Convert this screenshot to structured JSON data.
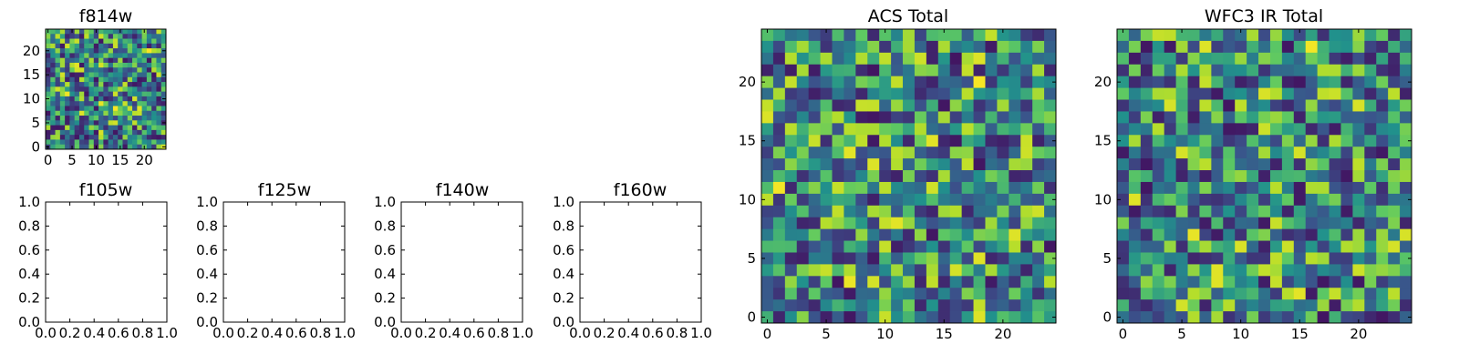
{
  "chart_data": [
    {
      "type": "heatmap",
      "title": "f814w",
      "xlim": [
        -0.5,
        24.5
      ],
      "ylim": [
        -0.5,
        24.5
      ],
      "x_ticks": [
        0,
        5,
        10,
        15,
        20
      ],
      "y_ticks": [
        0,
        5,
        10,
        15,
        20
      ],
      "tick_labels_x": [
        "0",
        "5",
        "10",
        "15",
        "20"
      ],
      "tick_labels_y": [
        "0",
        "5",
        "10",
        "15",
        "20"
      ],
      "colormap": "viridis",
      "grid_size": [
        25,
        25
      ],
      "values_note": "25x25 grid of noise-like pixel intensities; exact values not legible"
    },
    {
      "type": "empty",
      "title": "f105w",
      "xlim": [
        0,
        1
      ],
      "ylim": [
        0,
        1
      ],
      "tick_labels_x": [
        "0.0",
        "0.2",
        "0.4",
        "0.6",
        "0.8",
        "1.0"
      ],
      "tick_labels_y": [
        "0.0",
        "0.2",
        "0.4",
        "0.6",
        "0.8",
        "1.0"
      ]
    },
    {
      "type": "empty",
      "title": "f125w",
      "xlim": [
        0,
        1
      ],
      "ylim": [
        0,
        1
      ],
      "tick_labels_x": [
        "0.0",
        "0.2",
        "0.4",
        "0.6",
        "0.8",
        "1.0"
      ],
      "tick_labels_y": [
        "0.0",
        "0.2",
        "0.4",
        "0.6",
        "0.8",
        "1.0"
      ]
    },
    {
      "type": "empty",
      "title": "f140w",
      "xlim": [
        0,
        1
      ],
      "ylim": [
        0,
        1
      ],
      "tick_labels_x": [
        "0.0",
        "0.2",
        "0.4",
        "0.6",
        "0.8",
        "1.0"
      ],
      "tick_labels_y": [
        "0.0",
        "0.2",
        "0.4",
        "0.6",
        "0.8",
        "1.0"
      ]
    },
    {
      "type": "empty",
      "title": "f160w",
      "xlim": [
        0,
        1
      ],
      "ylim": [
        0,
        1
      ],
      "tick_labels_x": [
        "0.0",
        "0.2",
        "0.4",
        "0.6",
        "0.8",
        "1.0"
      ],
      "tick_labels_y": [
        "0.0",
        "0.2",
        "0.4",
        "0.6",
        "0.8",
        "1.0"
      ]
    },
    {
      "type": "heatmap",
      "title": "ACS Total",
      "xlim": [
        -0.5,
        24.5
      ],
      "ylim": [
        -0.5,
        24.5
      ],
      "tick_labels_x": [
        "0",
        "5",
        "10",
        "15",
        "20"
      ],
      "tick_labels_y": [
        "0",
        "5",
        "10",
        "15",
        "20"
      ],
      "colormap": "viridis",
      "grid_size": [
        25,
        25
      ],
      "values_note": "25x25 grid of noise-like pixel intensities; exact values not legible"
    },
    {
      "type": "heatmap",
      "title": "WFC3 IR Total",
      "xlim": [
        -0.5,
        24.5
      ],
      "ylim": [
        -0.5,
        24.5
      ],
      "tick_labels_x": [
        "0",
        "5",
        "10",
        "15",
        "20"
      ],
      "tick_labels_y": [
        "0",
        "5",
        "10",
        "15",
        "20"
      ],
      "colormap": "viridis",
      "grid_size": [
        25,
        25
      ],
      "values_note": "25x25 grid of noise-like pixel intensities; exact values not legible"
    }
  ],
  "colors": {
    "viridis": [
      "#440154",
      "#3b528b",
      "#21918c",
      "#5ec962",
      "#b5de2b",
      "#fde725"
    ]
  }
}
